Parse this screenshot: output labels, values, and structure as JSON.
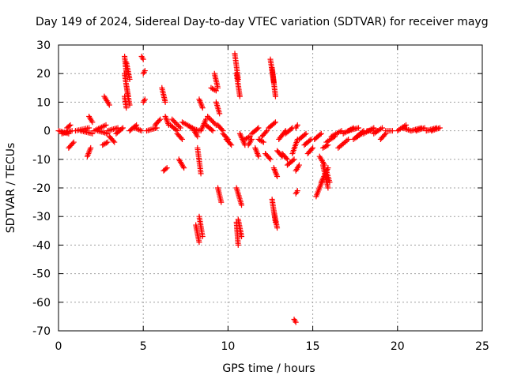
{
  "chart_data": {
    "type": "scatter",
    "title": "Day 149 of 2024, Sidereal Day-to-day VTEC variation (SDTVAR) for receiver mayg",
    "xlabel": "GPS time / hours",
    "ylabel": "SDTVAR / TECUs",
    "xlim": [
      0,
      25
    ],
    "ylim": [
      -70,
      30
    ],
    "xticks": [
      0,
      5,
      10,
      15,
      20,
      25
    ],
    "yticks": [
      -70,
      -60,
      -50,
      -40,
      -30,
      -20,
      -10,
      0,
      10,
      20,
      30
    ],
    "grid": true,
    "marker": "+",
    "color": "#ff0000",
    "segments": [
      [
        0.0,
        0,
        0.6,
        -1
      ],
      [
        0.2,
        -1,
        0.8,
        0
      ],
      [
        0.5,
        1,
        0.7,
        2
      ],
      [
        0.6,
        -6,
        0.9,
        -4
      ],
      [
        1.0,
        0,
        1.8,
        1
      ],
      [
        1.3,
        0,
        2.0,
        -1
      ],
      [
        1.7,
        -9,
        1.9,
        -6
      ],
      [
        1.8,
        5,
        2.0,
        3
      ],
      [
        2.1,
        0,
        2.8,
        2
      ],
      [
        2.3,
        0,
        2.9,
        -1
      ],
      [
        2.6,
        -5,
        2.9,
        -4
      ],
      [
        2.7,
        12,
        3.0,
        9
      ],
      [
        2.9,
        0,
        3.5,
        1
      ],
      [
        3.0,
        -2,
        3.3,
        -4
      ],
      [
        3.4,
        -1,
        3.8,
        1
      ],
      [
        3.9,
        26,
        4.0,
        20
      ],
      [
        3.9,
        20,
        4.1,
        12
      ],
      [
        4.0,
        16,
        4.2,
        9
      ],
      [
        3.9,
        12,
        4.0,
        8
      ],
      [
        4.0,
        24,
        4.2,
        18
      ],
      [
        4.2,
        0,
        4.6,
        2
      ],
      [
        4.5,
        1,
        4.9,
        0
      ],
      [
        4.9,
        26,
        5.0,
        25
      ],
      [
        5.0,
        20,
        5.1,
        21
      ],
      [
        5.0,
        10,
        5.1,
        11
      ],
      [
        5.2,
        0,
        5.8,
        1
      ],
      [
        5.7,
        2,
        6.0,
        4
      ],
      [
        6.1,
        15,
        6.3,
        10
      ],
      [
        6.3,
        5,
        6.5,
        2
      ],
      [
        6.2,
        -14,
        6.4,
        -13
      ],
      [
        6.6,
        2,
        7.0,
        0
      ],
      [
        6.7,
        4,
        7.2,
        1
      ],
      [
        7.0,
        -1,
        7.3,
        -3
      ],
      [
        7.1,
        -10,
        7.4,
        -13
      ],
      [
        7.3,
        3,
        7.9,
        1
      ],
      [
        7.8,
        1,
        8.3,
        0
      ],
      [
        8.0,
        0,
        8.2,
        -2
      ],
      [
        8.3,
        11,
        8.5,
        8
      ],
      [
        8.2,
        -6,
        8.4,
        -15
      ],
      [
        8.3,
        -30,
        8.5,
        -37
      ],
      [
        8.1,
        -33,
        8.3,
        -39
      ],
      [
        8.4,
        0,
        8.7,
        4
      ],
      [
        8.7,
        2,
        9.1,
        0
      ],
      [
        8.8,
        5,
        9.3,
        2
      ],
      [
        9.2,
        20,
        9.4,
        15
      ],
      [
        9.3,
        10,
        9.5,
        6
      ],
      [
        9.4,
        -20,
        9.6,
        -25
      ],
      [
        9.0,
        15,
        9.3,
        14
      ],
      [
        9.4,
        2,
        9.7,
        0
      ],
      [
        9.7,
        -1,
        10.0,
        -3
      ],
      [
        9.9,
        -3,
        10.2,
        -5
      ],
      [
        10.4,
        27,
        10.6,
        18
      ],
      [
        10.5,
        20,
        10.7,
        12
      ],
      [
        10.5,
        -20,
        10.8,
        -26
      ],
      [
        10.5,
        -32,
        10.6,
        -40
      ],
      [
        10.6,
        -31,
        10.8,
        -37
      ],
      [
        10.7,
        -1,
        11.0,
        -5
      ],
      [
        11.0,
        -3,
        11.3,
        -2
      ],
      [
        11.2,
        -5,
        11.4,
        -3
      ],
      [
        11.4,
        -1,
        11.8,
        1
      ],
      [
        11.6,
        -6,
        11.8,
        -9
      ],
      [
        11.8,
        -3,
        12.1,
        -4
      ],
      [
        12.0,
        -2,
        12.3,
        0
      ],
      [
        12.2,
        -8,
        12.5,
        -10
      ],
      [
        12.4,
        1,
        12.8,
        3
      ],
      [
        12.5,
        25,
        12.7,
        17
      ],
      [
        12.6,
        22,
        12.8,
        12
      ],
      [
        12.6,
        -24,
        12.8,
        -32
      ],
      [
        12.7,
        -28,
        12.9,
        -34
      ],
      [
        12.7,
        -13,
        12.9,
        -16
      ],
      [
        12.9,
        -7,
        13.2,
        -9
      ],
      [
        13.0,
        -3,
        13.4,
        0
      ],
      [
        13.2,
        -8,
        13.5,
        -10
      ],
      [
        13.4,
        -1,
        13.8,
        1
      ],
      [
        13.5,
        -12,
        13.9,
        -10
      ],
      [
        13.8,
        -8,
        14.1,
        -3
      ],
      [
        14.0,
        -14,
        14.2,
        -12
      ],
      [
        14.0,
        -22,
        14.1,
        -21
      ],
      [
        14.0,
        1,
        14.1,
        2
      ],
      [
        13.9,
        -66,
        14.0,
        -67
      ],
      [
        14.2,
        -3,
        14.6,
        -1
      ],
      [
        14.5,
        -5,
        14.9,
        -3
      ],
      [
        14.7,
        -8,
        15.0,
        -6
      ],
      [
        15.1,
        -3,
        15.5,
        -1
      ],
      [
        15.2,
        -23,
        15.6,
        -17
      ],
      [
        15.5,
        -18,
        15.9,
        -13
      ],
      [
        15.6,
        -12,
        15.9,
        -20
      ],
      [
        15.8,
        -14,
        16.0,
        -18
      ],
      [
        15.4,
        -9,
        15.7,
        -12
      ],
      [
        15.6,
        -6,
        15.9,
        -5
      ],
      [
        15.8,
        -4,
        16.3,
        -2
      ],
      [
        16.1,
        -2,
        16.7,
        0
      ],
      [
        16.5,
        -6,
        17.1,
        -3
      ],
      [
        16.8,
        -1,
        17.4,
        1
      ],
      [
        17.1,
        0,
        17.7,
        1
      ],
      [
        17.4,
        -3,
        17.9,
        -1
      ],
      [
        17.6,
        -2,
        18.0,
        0
      ],
      [
        18.0,
        -1,
        18.6,
        1
      ],
      [
        18.2,
        0,
        18.8,
        0
      ],
      [
        18.6,
        -1,
        19.1,
        1
      ],
      [
        19.0,
        -3,
        19.3,
        -1
      ],
      [
        19.3,
        0,
        19.7,
        0
      ],
      [
        20.0,
        0,
        20.5,
        2
      ],
      [
        20.3,
        1,
        20.8,
        0
      ],
      [
        20.8,
        0,
        21.4,
        1
      ],
      [
        21.1,
        0,
        21.6,
        1
      ],
      [
        21.7,
        0,
        22.3,
        1
      ],
      [
        22.0,
        0,
        22.5,
        1
      ]
    ]
  }
}
